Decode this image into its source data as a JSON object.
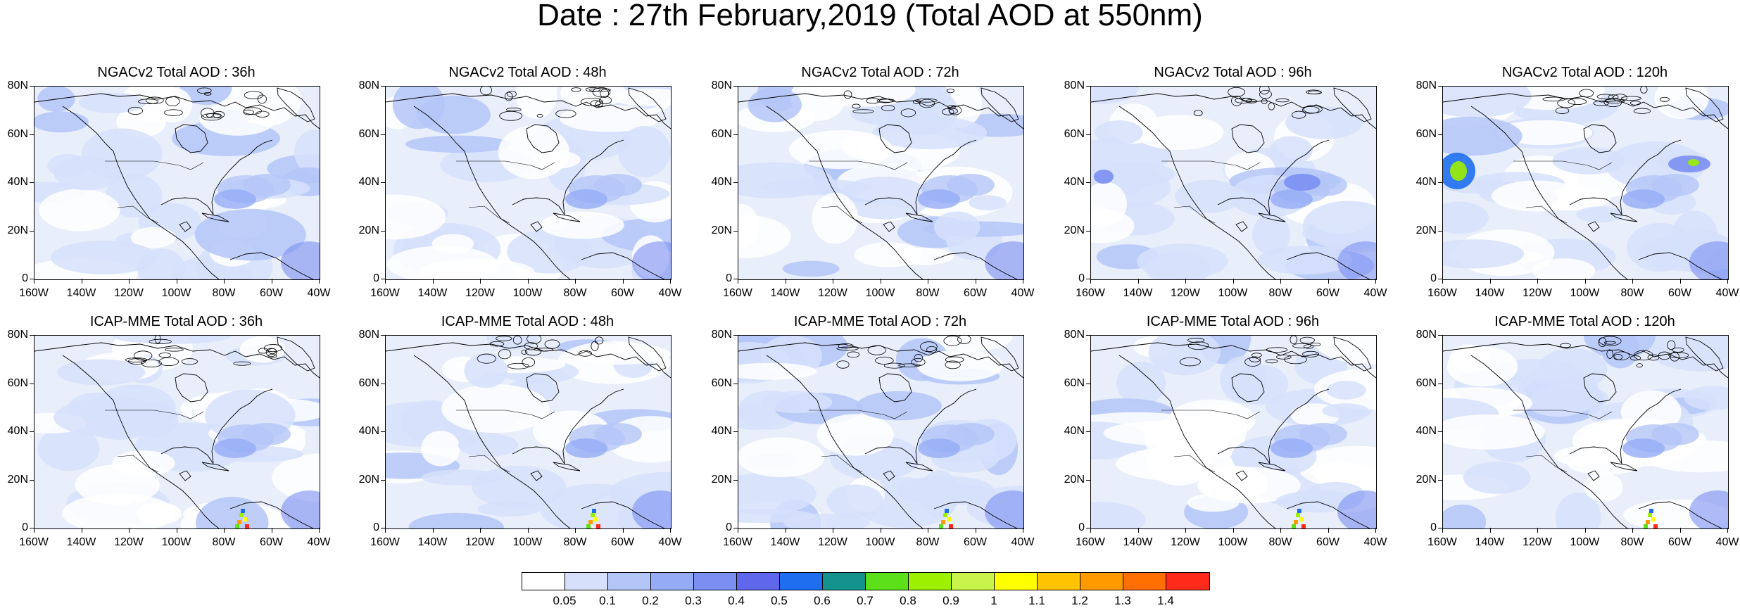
{
  "title": "Date : 27th February,2019 (Total AOD at 550nm)",
  "y_ticks": [
    "80N",
    "60N",
    "40N",
    "20N",
    "0"
  ],
  "x_ticks": [
    "160W",
    "140W",
    "120W",
    "100W",
    "80W",
    "60W",
    "40W"
  ],
  "panels": [
    {
      "title": "NGACv2 Total AOD : 36h",
      "model": "NGACv2",
      "lead": "36h"
    },
    {
      "title": "NGACv2 Total AOD : 48h",
      "model": "NGACv2",
      "lead": "48h"
    },
    {
      "title": "NGACv2 Total AOD : 72h",
      "model": "NGACv2",
      "lead": "72h"
    },
    {
      "title": "NGACv2 Total AOD : 96h",
      "model": "NGACv2",
      "lead": "96h"
    },
    {
      "title": "NGACv2 Total AOD : 120h",
      "model": "NGACv2",
      "lead": "120h"
    },
    {
      "title": "ICAP-MME Total AOD : 36h",
      "model": "ICAP-MME",
      "lead": "36h"
    },
    {
      "title": "ICAP-MME Total AOD : 48h",
      "model": "ICAP-MME",
      "lead": "48h"
    },
    {
      "title": "ICAP-MME Total AOD : 72h",
      "model": "ICAP-MME",
      "lead": "72h"
    },
    {
      "title": "ICAP-MME Total AOD : 96h",
      "model": "ICAP-MME",
      "lead": "96h"
    },
    {
      "title": "ICAP-MME Total AOD : 120h",
      "model": "ICAP-MME",
      "lead": "120h"
    }
  ],
  "colorbar": {
    "colors": [
      "#ffffff",
      "#d6e0fb",
      "#b4c6f8",
      "#95abf6",
      "#7b8ff2",
      "#5f67ec",
      "#1f6ef0",
      "#13928e",
      "#5ce01a",
      "#9cf000",
      "#c9f54a",
      "#ffff00",
      "#ffc300",
      "#ff9b00",
      "#ff6f00",
      "#ff2a1a"
    ],
    "labels": [
      "0.05",
      "0.1",
      "0.2",
      "0.3",
      "0.4",
      "0.5",
      "0.6",
      "0.7",
      "0.8",
      "0.9",
      "1",
      "1.1",
      "1.2",
      "1.3",
      "1.4"
    ]
  }
}
